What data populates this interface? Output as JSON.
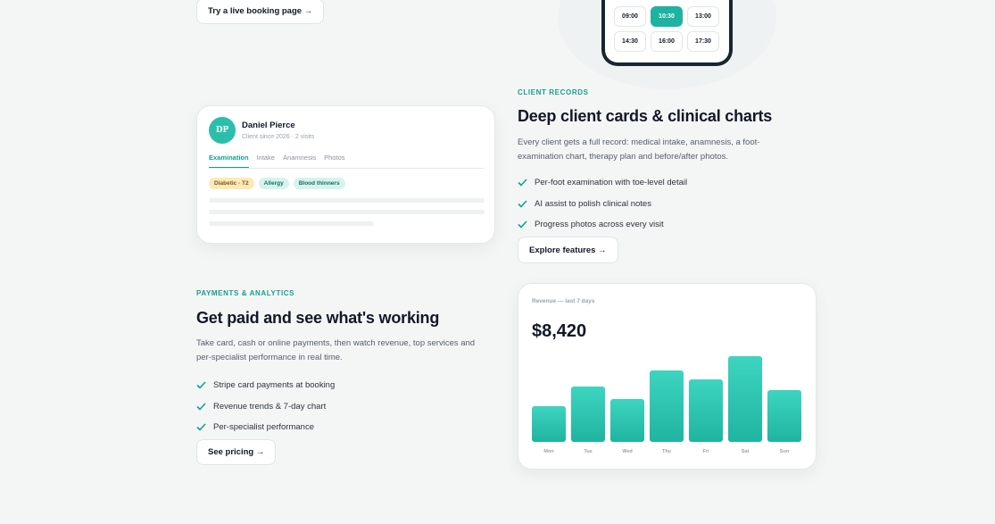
{
  "booking": {
    "button": "Try a live booking page →",
    "time_slots": [
      "09:00",
      "10:30",
      "13:00",
      "14:30",
      "16:00",
      "17:30"
    ]
  },
  "client_records": {
    "eyebrow": "CLIENT RECORDS",
    "title": "Deep client cards & clinical charts",
    "text": "Every client gets a full record: medical intake, anamnesis, a foot-examination chart, therapy plan and before/after photos.",
    "features": [
      "Per-foot examination with toe-level detail",
      "AI assist to polish clinical notes",
      "Progress photos across every visit"
    ],
    "button": "Explore features →",
    "card": {
      "initials": "DP",
      "name": "Daniel Pierce",
      "meta": "Client since 2026 · 2 visits",
      "tabs": [
        "Examination",
        "Intake",
        "Anamnesis",
        "Photos"
      ],
      "tags": [
        "Diabetic · T2",
        "Allergy",
        "Blood thinners"
      ]
    }
  },
  "payments": {
    "eyebrow": "PAYMENTS & ANALYTICS",
    "title": "Get paid and see what's working",
    "text": "Take card, cash or online payments, then watch revenue, top services and per-specialist performance in real time.",
    "features": [
      "Stripe card payments at booking",
      "Revenue trends & 7-day chart",
      "Per-specialist performance"
    ],
    "button": "See pricing →",
    "revenue": {
      "label": "Revenue — last 7 days",
      "total": "$8,420",
      "categories": [
        "Mon",
        "Tue",
        "Wed",
        "Thu",
        "Fri",
        "Sat",
        "Sun"
      ],
      "values": [
        742,
        1150,
        890,
        1484,
        1298,
        1780,
        1076
      ]
    }
  }
}
